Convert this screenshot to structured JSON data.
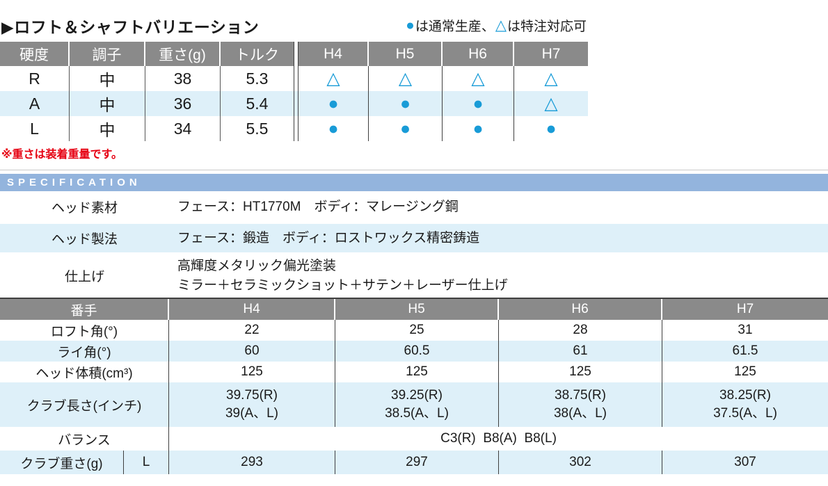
{
  "header": {
    "title": "▶ロフト＆シャフトバリエーション",
    "legend": {
      "circle_symbol": "●",
      "circle_text": "は通常生産、",
      "triangle_symbol": "△",
      "triangle_text": "は特注対応可"
    }
  },
  "shaft_table": {
    "columns": [
      "硬度",
      "調子",
      "重さ(g)",
      "トルク",
      "H4",
      "H5",
      "H6",
      "H7"
    ],
    "rows": [
      {
        "cells": [
          "R",
          "中",
          "38",
          "5.3"
        ],
        "marks": [
          "△",
          "△",
          "△",
          "△"
        ]
      },
      {
        "cells": [
          "A",
          "中",
          "36",
          "5.4"
        ],
        "marks": [
          "●",
          "●",
          "●",
          "△"
        ]
      },
      {
        "cells": [
          "L",
          "中",
          "34",
          "5.5"
        ],
        "marks": [
          "●",
          "●",
          "●",
          "●"
        ]
      }
    ]
  },
  "note": "※重さは装着重量です。",
  "specification": {
    "title": "SPECIFICATION",
    "rows": [
      {
        "label": "ヘッド素材",
        "line1": "フェース：HT1770M　ボディ：マレージング鋼"
      },
      {
        "label": "ヘッド製法",
        "line1": "フェース：鍛造　ボディ：ロストワックス精密鋳造"
      },
      {
        "label": "仕上げ",
        "line1": "高輝度メタリック偏光塗装",
        "line2": "ミラー＋セラミックショット＋サテン＋レーザー仕上げ"
      }
    ]
  },
  "spec_table": {
    "columns": [
      "番手",
      "H4",
      "H5",
      "H6",
      "H7"
    ],
    "loft": {
      "label": "ロフト角(°)",
      "values": [
        "22",
        "25",
        "28",
        "31"
      ]
    },
    "lie": {
      "label": "ライ角(°)",
      "values": [
        "60",
        "60.5",
        "61",
        "61.5"
      ]
    },
    "volume": {
      "label": "ヘッド体積(cm³)",
      "values": [
        "125",
        "125",
        "125",
        "125"
      ]
    },
    "length": {
      "label": "クラブ長さ(インチ)",
      "values_r": [
        "39.75(R)",
        "39.25(R)",
        "38.75(R)",
        "38.25(R)"
      ],
      "values_al": [
        "39(A、L)",
        "38.5(A、L)",
        "38(A、L)",
        "37.5(A、L)"
      ]
    },
    "balance": {
      "label": "バランス",
      "value": "C3(R)  B8(A)  B8(L)"
    },
    "weight": {
      "label": "クラブ重さ(g)",
      "sub_label": "L",
      "values": [
        "293",
        "297",
        "302",
        "307"
      ]
    }
  },
  "colors": {
    "accent_blue": "#189bd7",
    "row_highlight": "#def0f9",
    "table_header_gray": "#8a8a8a",
    "spec_bar_blue": "#93b4dd",
    "note_red": "#e60012"
  }
}
